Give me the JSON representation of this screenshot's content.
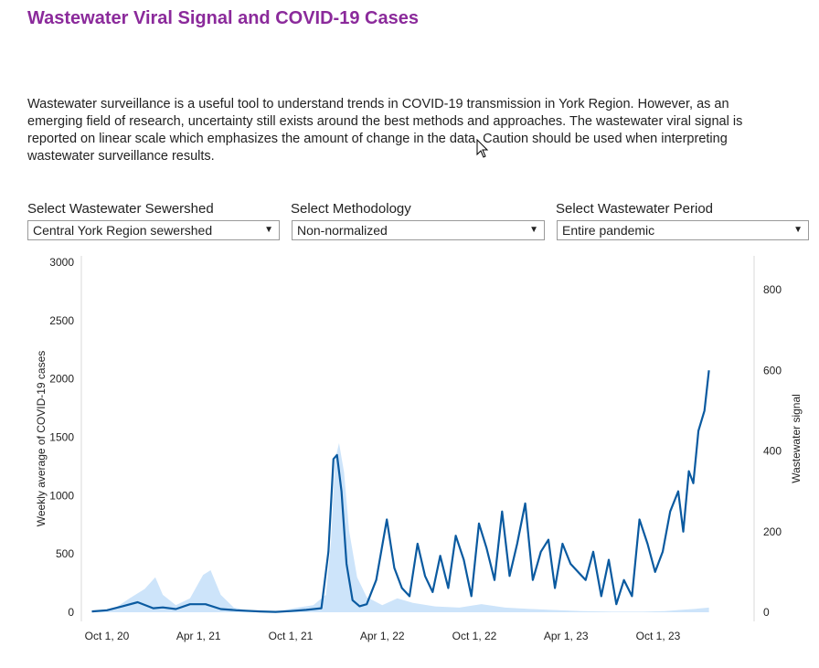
{
  "title": "Wastewater Viral Signal and COVID-19 Cases",
  "description": "Wastewater surveillance is a useful tool to understand trends in COVID-19 transmission in York Region. However, as an emerging field of research, uncertainty still exists around the best methods and approaches. The wastewater viral signal is reported on linear scale which emphasizes the amount of change in the data. Caution should be used when interpreting wastewater surveillance results.",
  "controls": {
    "sewershed": {
      "label": "Select Wastewater Sewershed",
      "value": "Central York Region sewershed"
    },
    "methodology": {
      "label": "Select Methodology",
      "value": "Non-normalized"
    },
    "period": {
      "label": "Select Wastewater Period",
      "value": "Entire pandemic"
    }
  },
  "icons": {
    "dropdown": "chevron-down-icon",
    "cursor": "pointer-cursor-icon"
  },
  "colors": {
    "title": "#8b2a9b",
    "signal_line": "#0a5aa0",
    "cases_area": "#cde4fa"
  },
  "chart_data": {
    "type": "line",
    "xlabel": "",
    "ylabel": "Weekly average of COVID-19 cases",
    "y2label": "Wastewater signal",
    "x_ticks": [
      "Oct 1, 20",
      "Apr 1, 21",
      "Oct 1, 21",
      "Apr 1, 22",
      "Oct 1, 22",
      "Apr 1, 23",
      "Oct 1, 23"
    ],
    "y_ticks": [
      "0",
      "500",
      "1000",
      "1500",
      "2000",
      "2500",
      "3000"
    ],
    "y2_ticks": [
      "0",
      "200",
      "400",
      "600",
      "800"
    ],
    "ylim": [
      0,
      3000
    ],
    "y2lim": [
      0,
      800
    ],
    "grid": false,
    "series": [
      {
        "name": "",
        "kind": "area",
        "axis": "left",
        "x": [
          "2020-09-01",
          "2020-10-15",
          "2020-11-15",
          "2020-12-15",
          "2021-01-05",
          "2021-01-20",
          "2021-02-15",
          "2021-03-15",
          "2021-04-10",
          "2021-04-25",
          "2021-05-15",
          "2021-06-10",
          "2021-07-15",
          "2021-09-01",
          "2021-10-15",
          "2021-11-15",
          "2021-12-10",
          "2021-12-20",
          "2021-12-28",
          "2022-01-05",
          "2022-01-15",
          "2022-01-25",
          "2022-02-10",
          "2022-03-01",
          "2022-04-01",
          "2022-05-01",
          "2022-06-01",
          "2022-07-15",
          "2022-09-01",
          "2022-10-15",
          "2022-12-01",
          "2023-01-15",
          "2023-03-01",
          "2023-05-01",
          "2023-07-01",
          "2023-09-01",
          "2023-10-15",
          "2023-11-15",
          "2023-12-15",
          "2024-01-10"
        ],
        "values": [
          0,
          30,
          120,
          200,
          300,
          150,
          60,
          120,
          320,
          360,
          150,
          40,
          10,
          5,
          40,
          60,
          150,
          600,
          1300,
          1450,
          1200,
          700,
          300,
          130,
          60,
          120,
          80,
          50,
          40,
          70,
          40,
          30,
          20,
          10,
          5,
          5,
          10,
          20,
          30,
          40
        ]
      },
      {
        "name": "",
        "kind": "line",
        "axis": "right",
        "x": [
          "2020-09-01",
          "2020-10-01",
          "2020-11-01",
          "2020-12-01",
          "2021-01-01",
          "2021-01-20",
          "2021-02-15",
          "2021-03-15",
          "2021-04-15",
          "2021-05-15",
          "2021-06-15",
          "2021-08-01",
          "2021-09-01",
          "2021-10-01",
          "2021-11-01",
          "2021-12-01",
          "2021-12-15",
          "2021-12-25",
          "2022-01-01",
          "2022-01-10",
          "2022-01-20",
          "2022-02-01",
          "2022-02-15",
          "2022-03-01",
          "2022-03-20",
          "2022-04-10",
          "2022-04-25",
          "2022-05-10",
          "2022-05-25",
          "2022-06-10",
          "2022-06-25",
          "2022-07-10",
          "2022-07-25",
          "2022-08-10",
          "2022-08-25",
          "2022-09-10",
          "2022-09-25",
          "2022-10-10",
          "2022-10-25",
          "2022-11-10",
          "2022-11-25",
          "2022-12-10",
          "2022-12-25",
          "2023-01-10",
          "2023-01-25",
          "2023-02-10",
          "2023-02-25",
          "2023-03-10",
          "2023-03-25",
          "2023-04-10",
          "2023-04-25",
          "2023-05-10",
          "2023-05-25",
          "2023-06-10",
          "2023-06-25",
          "2023-07-10",
          "2023-07-25",
          "2023-08-10",
          "2023-08-25",
          "2023-09-10",
          "2023-09-25",
          "2023-10-10",
          "2023-10-25",
          "2023-11-10",
          "2023-11-20",
          "2023-12-01",
          "2023-12-10",
          "2023-12-20",
          "2024-01-01",
          "2024-01-10"
        ],
        "values": [
          2,
          5,
          15,
          25,
          10,
          12,
          8,
          20,
          20,
          8,
          5,
          2,
          1,
          3,
          6,
          10,
          150,
          380,
          390,
          300,
          120,
          30,
          15,
          20,
          80,
          230,
          110,
          60,
          40,
          170,
          90,
          50,
          140,
          60,
          190,
          130,
          40,
          220,
          160,
          80,
          250,
          90,
          170,
          270,
          80,
          150,
          180,
          60,
          170,
          120,
          100,
          80,
          150,
          40,
          130,
          20,
          80,
          40,
          230,
          170,
          100,
          150,
          250,
          300,
          200,
          350,
          320,
          450,
          500,
          600
        ]
      }
    ]
  }
}
